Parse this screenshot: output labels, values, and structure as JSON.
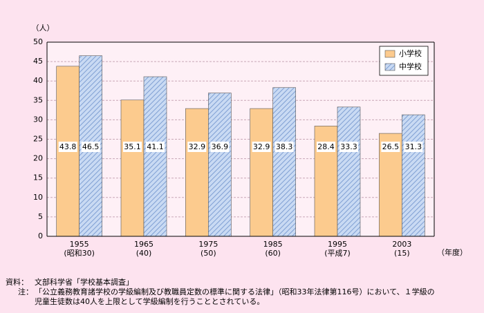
{
  "chart_data": {
    "type": "bar",
    "y_unit": "（人）",
    "x_unit": "（年度）",
    "categories": [
      "1955",
      "1965",
      "1975",
      "1985",
      "1995",
      "2003"
    ],
    "category_sublabels": [
      "(昭和30)",
      "(40)",
      "(50)",
      "(60)",
      "(平成7)",
      "(15)"
    ],
    "series": [
      {
        "name": "小学校",
        "color": "#fccb8e",
        "values": [
          43.8,
          35.1,
          32.9,
          32.9,
          28.4,
          26.5
        ]
      },
      {
        "name": "中学校",
        "color": "#a9c4ea",
        "values": [
          46.5,
          41.1,
          36.9,
          38.3,
          33.3,
          31.3
        ]
      }
    ],
    "ylim": [
      0,
      50
    ],
    "yticks": [
      0,
      5,
      10,
      15,
      20,
      25,
      30,
      35,
      40,
      45,
      50
    ],
    "grid": true,
    "legend": "top-right"
  },
  "source_label": "資料：",
  "source": "文部科学省「学校基本調査」",
  "note_label": "注：",
  "note": [
    "「公立義務教育諸学校の学級編制及び教職員定数の標準に関する法律」（昭和33年法律第116号）において、１学級の",
    "児童生徒数は40人を上限として学級編制を行うこととされている。"
  ]
}
